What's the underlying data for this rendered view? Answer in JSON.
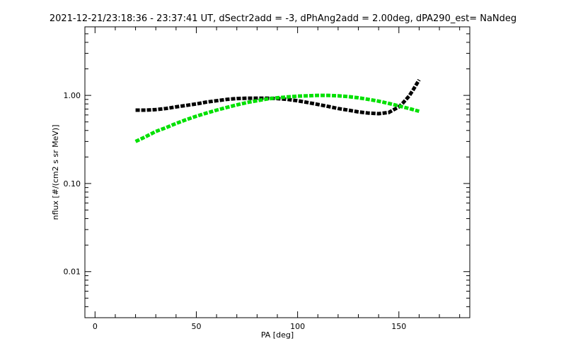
{
  "chart_data": {
    "type": "line",
    "title": "2021-12-21/23:18:36 - 23:37:41 UT, dSectr2add = -3, dPhAng2add = 2.00deg, dPA290_est=   NaNdeg",
    "xlabel": "PA [deg]",
    "ylabel": "nflux [#/(cm2 s sr MeV)]",
    "xlim": [
      -5,
      185
    ],
    "ylim": [
      0.003,
      6
    ],
    "yscale": "log",
    "grid": false,
    "x_ticks": [
      {
        "value": 0,
        "label": "0"
      },
      {
        "value": 50,
        "label": "50"
      },
      {
        "value": 100,
        "label": "100"
      },
      {
        "value": 150,
        "label": "150"
      }
    ],
    "y_ticks": [
      {
        "value": 0.01,
        "label": "0.01"
      },
      {
        "value": 0.1,
        "label": "0.10"
      },
      {
        "value": 1.0,
        "label": "1.00"
      }
    ],
    "series": [
      {
        "color": "#000000",
        "x": [
          20,
          25,
          30,
          35,
          40,
          45,
          50,
          55,
          60,
          65,
          70,
          75,
          80,
          85,
          90,
          95,
          100,
          105,
          110,
          115,
          120,
          125,
          130,
          135,
          140,
          145,
          150,
          152,
          155,
          157,
          160
        ],
        "y": [
          0.68,
          0.68,
          0.69,
          0.71,
          0.74,
          0.77,
          0.8,
          0.84,
          0.87,
          0.9,
          0.92,
          0.93,
          0.93,
          0.93,
          0.92,
          0.9,
          0.87,
          0.83,
          0.79,
          0.75,
          0.71,
          0.68,
          0.65,
          0.63,
          0.62,
          0.64,
          0.74,
          0.82,
          0.98,
          1.15,
          1.5
        ]
      },
      {
        "color": "#00e000",
        "x": [
          20,
          25,
          30,
          35,
          40,
          45,
          50,
          55,
          60,
          65,
          70,
          75,
          80,
          85,
          90,
          95,
          100,
          105,
          110,
          115,
          120,
          125,
          130,
          135,
          140,
          145,
          150,
          155,
          160
        ],
        "y": [
          0.3,
          0.34,
          0.39,
          0.43,
          0.48,
          0.53,
          0.58,
          0.63,
          0.68,
          0.73,
          0.78,
          0.83,
          0.87,
          0.91,
          0.94,
          0.96,
          0.98,
          0.99,
          1.0,
          1.0,
          0.99,
          0.97,
          0.94,
          0.9,
          0.86,
          0.81,
          0.76,
          0.71,
          0.66
        ]
      }
    ]
  }
}
